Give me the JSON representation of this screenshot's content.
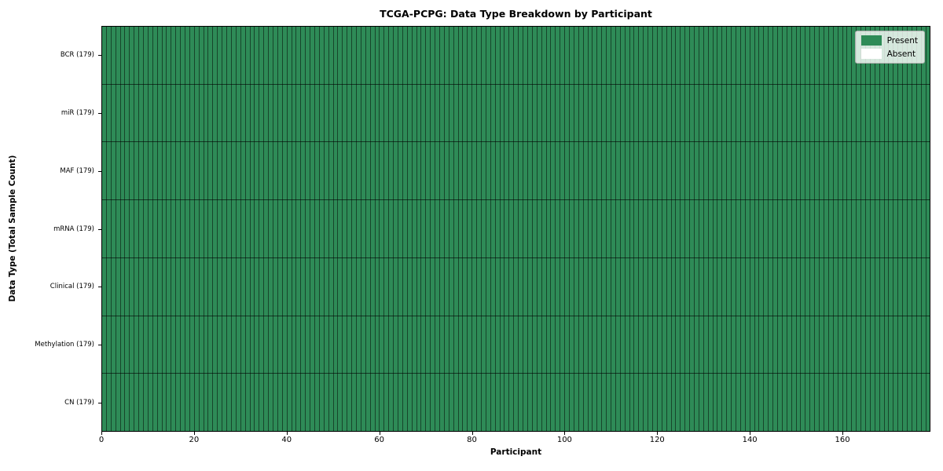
{
  "title": "TCGA-PCPG: Data Type Breakdown by Participant",
  "axes": {
    "xlabel": "Participant",
    "ylabel": "Data Type (Total Sample Count)"
  },
  "legend": {
    "position": "upper right",
    "entries": [
      {
        "label": "Present",
        "color": "#2e8b57"
      },
      {
        "label": "Absent",
        "color": "#ffffff"
      }
    ]
  },
  "chart_data": {
    "type": "heatmap",
    "title": "TCGA-PCPG: Data Type Breakdown by Participant",
    "xlabel": "Participant",
    "ylabel": "Data Type (Total Sample Count)",
    "x_range": [
      0,
      179
    ],
    "x_ticks": [
      0,
      20,
      40,
      60,
      80,
      100,
      120,
      140,
      160
    ],
    "n_participants": 179,
    "grid": "cell borders on, dark edges per participant column and per data-type row",
    "legend_entries": [
      "Present",
      "Absent"
    ],
    "legend_position": "upper right",
    "colors": {
      "present": "#2e8b57",
      "absent": "#ffffff"
    },
    "rows": [
      {
        "label": "BCR (179)",
        "data_type": "BCR",
        "total_samples": 179,
        "present_count": 179,
        "absent_count": 0
      },
      {
        "label": "miR (179)",
        "data_type": "miR",
        "total_samples": 179,
        "present_count": 179,
        "absent_count": 0
      },
      {
        "label": "MAF (179)",
        "data_type": "MAF",
        "total_samples": 179,
        "present_count": 179,
        "absent_count": 0
      },
      {
        "label": "mRNA (179)",
        "data_type": "mRNA",
        "total_samples": 179,
        "present_count": 179,
        "absent_count": 0
      },
      {
        "label": "Clinical (179)",
        "data_type": "Clinical",
        "total_samples": 179,
        "present_count": 179,
        "absent_count": 0
      },
      {
        "label": "Methylation (179)",
        "data_type": "Methylation",
        "total_samples": 179,
        "present_count": 179,
        "absent_count": 0
      },
      {
        "label": "CN (179)",
        "data_type": "CN",
        "total_samples": 179,
        "present_count": 179,
        "absent_count": 0
      }
    ]
  }
}
